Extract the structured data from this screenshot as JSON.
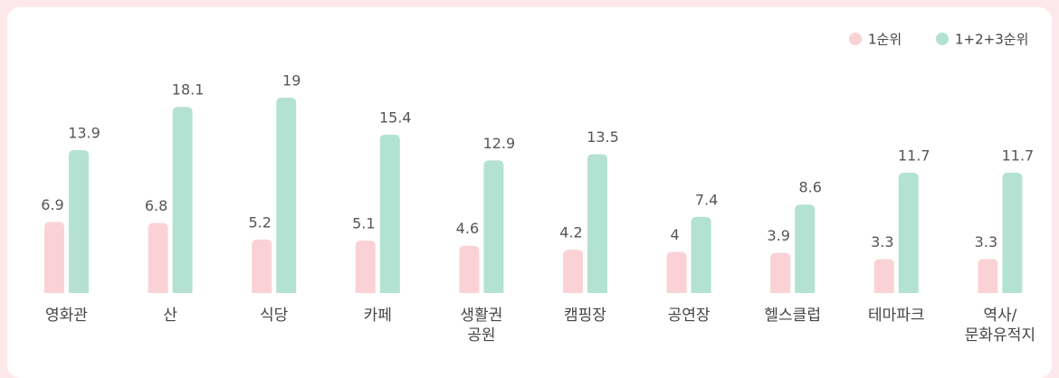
{
  "chart_data": {
    "type": "bar",
    "categories": [
      "영화관",
      "산",
      "식당",
      "카페",
      "생활권\n공원",
      "캠핑장",
      "공연장",
      "헬스클럽",
      "테마파크",
      "역사/\n문화유적지"
    ],
    "series": [
      {
        "name": "1순위",
        "color": "#fad2d5",
        "values": [
          6.9,
          6.8,
          5.2,
          5.1,
          4.6,
          4.2,
          4.0,
          3.9,
          3.3,
          3.3
        ]
      },
      {
        "name": "1+2+3순위",
        "color": "#b3e2d2",
        "values": [
          13.9,
          18.1,
          19.0,
          15.4,
          12.9,
          13.5,
          7.4,
          8.6,
          11.7,
          11.7
        ]
      }
    ]
  }
}
